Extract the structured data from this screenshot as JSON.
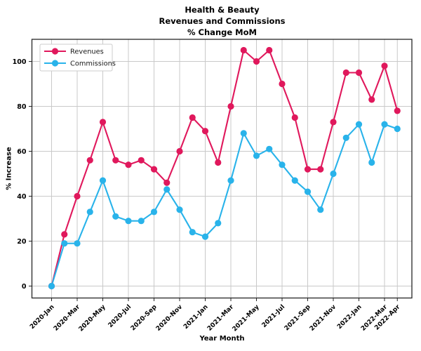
{
  "chart_data": {
    "type": "line",
    "title_lines": [
      "Health & Beauty",
      "Revenues and Commissions",
      "% Change MoM"
    ],
    "xlabel": "Year Month",
    "ylabel": "% Increase",
    "categories": [
      "2020-Jan",
      "2020-Feb",
      "2020-Mar",
      "2020-Apr",
      "2020-May",
      "2020-Jun",
      "2020-Jul",
      "2020-Aug",
      "2020-Sep",
      "2020-Oct",
      "2020-Nov",
      "2020-Dec",
      "2021-Jan",
      "2021-Feb",
      "2021-Mar",
      "2021-Apr",
      "2021-May",
      "2021-Jun",
      "2021-Jul",
      "2021-Aug",
      "2021-Sep",
      "2021-Oct",
      "2021-Nov",
      "2021-Dec",
      "2022-Jan",
      "2022-Feb",
      "2022-Mar",
      "2022-Apr"
    ],
    "x_tick_labels": [
      "2020-Jan",
      "2020-Mar",
      "2020-May",
      "2020-Jul",
      "2020-Sep",
      "2020-Nov",
      "2021-Jan",
      "2021-Mar",
      "2021-May",
      "2021-Jul",
      "2021-Sep",
      "2021-Nov",
      "2022-Jan",
      "2022-Mar",
      "2022-Apr"
    ],
    "x_tick_indices": [
      0,
      2,
      4,
      6,
      8,
      10,
      12,
      14,
      16,
      18,
      20,
      22,
      24,
      26,
      27
    ],
    "y_ticks": [
      0,
      20,
      40,
      60,
      80,
      100
    ],
    "ylim": [
      -5,
      110
    ],
    "grid": true,
    "legend_position": "upper-left",
    "series": [
      {
        "name": "Revenues",
        "color": "#E0185C",
        "values": [
          0,
          23,
          40,
          56,
          73,
          56,
          54,
          56,
          52,
          46,
          60,
          75,
          69,
          55,
          80,
          105,
          100,
          105,
          90,
          75,
          52,
          52,
          73,
          95,
          95,
          83,
          98,
          78
        ]
      },
      {
        "name": "Commissions",
        "color": "#29B3EA",
        "values": [
          0,
          19,
          19,
          33,
          47,
          31,
          29,
          29,
          33,
          43,
          34,
          24,
          22,
          28,
          47,
          68,
          58,
          61,
          54,
          47,
          42,
          34,
          50,
          66,
          72,
          55,
          72,
          70
        ]
      }
    ],
    "colors": {
      "grid": "#c9c9c9",
      "spine": "#262626",
      "text": "#000000"
    }
  }
}
